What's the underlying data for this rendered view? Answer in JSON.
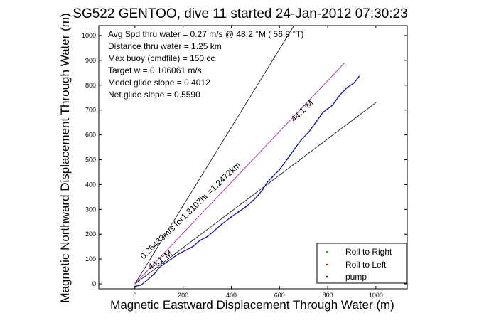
{
  "chart_data": {
    "type": "line",
    "title": "SG522 GENTOO, dive 11 started 24-Jan-2012 07:30:23",
    "xlabel": "Magnetic Eastward Displacement Through Water (m)",
    "ylabel": "Magnetic Northward Displacement Through Water (m)",
    "xlim": [
      -150,
      1130
    ],
    "ylim": [
      -20,
      1040
    ],
    "xticks": [
      0,
      200,
      400,
      600,
      800,
      1000
    ],
    "yticks": [
      0,
      100,
      200,
      300,
      400,
      500,
      600,
      700,
      800,
      900,
      1000
    ],
    "grid": false,
    "legend_position": "bottom-right",
    "info_lines": [
      "Avg Spd thru water =  0.27 m/s @  48.2    °M ( 56.9 °T)",
      "Distance thru water =  1.25 km",
      "Max buoy (cmdfile) = 150 cc",
      "Target w = 0.106061 m/s",
      "Model glide slope = 0.4012",
      "Net glide slope = 0.5590"
    ],
    "annotations": [
      "0.26433m/s for1.3107hr =1.2472km",
      "44.1°M",
      "44.1°M"
    ],
    "series": [
      {
        "name": "pump",
        "color": "#0000cc",
        "x": [
          0,
          25,
          50,
          80,
          100,
          120,
          150,
          180,
          210,
          240,
          270,
          300,
          330,
          360,
          400,
          430,
          460,
          490,
          510,
          530,
          550,
          570,
          600,
          630,
          660,
          690,
          720,
          750,
          780,
          800,
          820,
          850,
          880,
          910,
          930
        ],
        "y": [
          -10,
          -5,
          15,
          40,
          65,
          80,
          100,
          120,
          135,
          150,
          175,
          190,
          215,
          240,
          270,
          290,
          310,
          335,
          355,
          380,
          410,
          430,
          460,
          500,
          540,
          580,
          610,
          650,
          690,
          705,
          720,
          760,
          790,
          810,
          835
        ]
      }
    ],
    "extra_series_legend": [
      {
        "name": "Roll to Right",
        "color": "#00bb00"
      },
      {
        "name": "Roll to Left",
        "color": "#dd0000"
      },
      {
        "name": "pump",
        "color": "#0000cc"
      }
    ],
    "reference_lines": [
      {
        "color": "#000000",
        "x": [
          0,
          660
        ],
        "y": [
          0,
          1040
        ]
      },
      {
        "color": "#000000",
        "x": [
          0,
          1000
        ],
        "y": [
          0,
          730
        ]
      },
      {
        "color": "#bb00bb",
        "x": [
          0,
          870
        ],
        "y": [
          0,
          890
        ]
      }
    ]
  }
}
